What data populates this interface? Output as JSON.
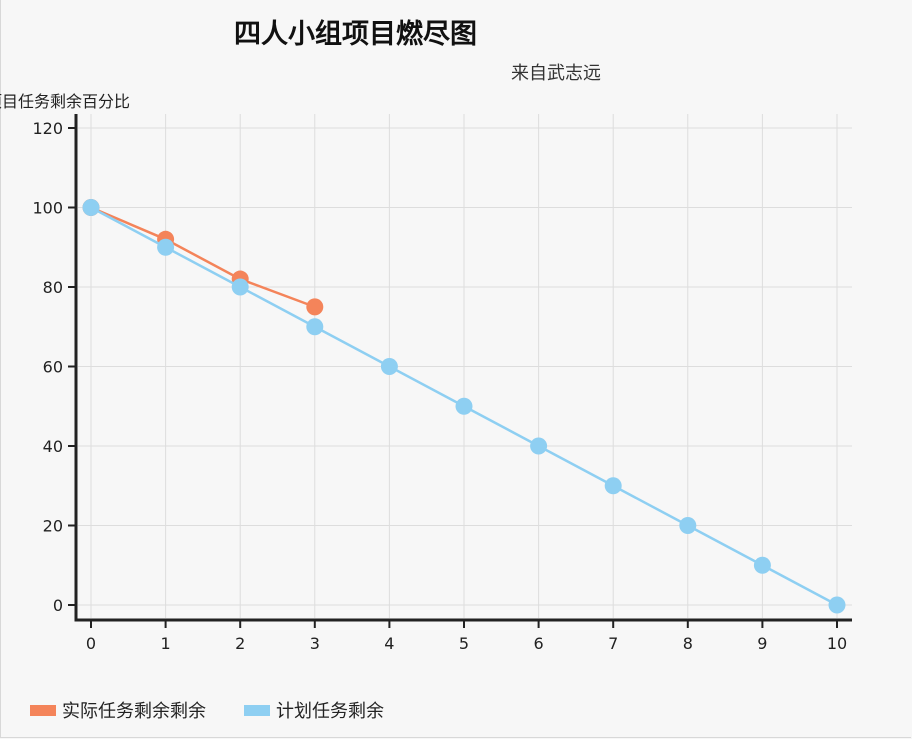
{
  "colors": {
    "actual": "#f4845a",
    "planned": "#8ecff2",
    "axis": "#222222",
    "grid": "#dddddd"
  },
  "chart_data": {
    "type": "line",
    "title": "四人小组项目燃尽图",
    "subtitle": "来自武志远",
    "ylabel": "项目任务剩余百分比",
    "xlabel": "",
    "x": [
      0,
      1,
      2,
      3,
      4,
      5,
      6,
      7,
      8,
      9,
      10
    ],
    "xlim": [
      0,
      10
    ],
    "ylim": [
      0,
      120
    ],
    "yticks": [
      0,
      20,
      40,
      60,
      80,
      100,
      120
    ],
    "grid": true,
    "legend_position": "bottom-left",
    "series": [
      {
        "name": "实际任务剩余剩余",
        "color": "#f4845a",
        "x": [
          0,
          1,
          2,
          3
        ],
        "values": [
          100,
          92,
          82,
          75
        ]
      },
      {
        "name": "计划任务剩余",
        "color": "#8ecff2",
        "x": [
          0,
          1,
          2,
          3,
          4,
          5,
          6,
          7,
          8,
          9,
          10
        ],
        "values": [
          100,
          90,
          80,
          70,
          60,
          50,
          40,
          30,
          20,
          10,
          0
        ]
      }
    ]
  }
}
